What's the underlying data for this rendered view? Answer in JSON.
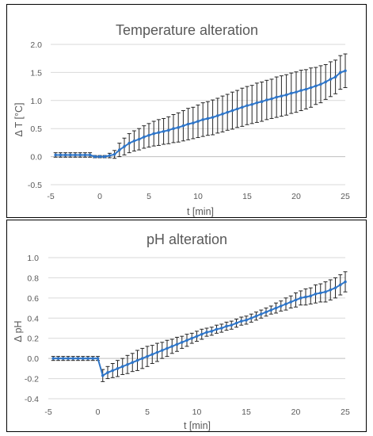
{
  "colors": {
    "series": "#2E75C8",
    "errorbar": "#262626",
    "grid": "#d9d9d9",
    "text": "#595959"
  },
  "chart_data": [
    {
      "type": "line",
      "title": "Temperature alteration",
      "xlabel": "t [min]",
      "ylabel": "Δ T [°C]",
      "xlim": [
        -5,
        25
      ],
      "ylim": [
        -0.5,
        2.0
      ],
      "xticks": [
        -5,
        0,
        5,
        10,
        15,
        20,
        25
      ],
      "xtick_labels": [
        "-5",
        "0",
        "5",
        "10",
        "15",
        "20",
        "25"
      ],
      "yticks": [
        -0.5,
        0,
        0.5,
        1,
        1.5,
        2
      ],
      "ytick_labels": [
        "-0.5",
        "0.0",
        "0.5",
        "1.0",
        "1.5",
        "2.0"
      ],
      "grid": "horizontal",
      "series": [
        {
          "x": [
            -4.5,
            -4,
            -3.5,
            -3,
            -2.5,
            -2,
            -1.5,
            -1,
            -0.5,
            0,
            0.5,
            1,
            1.5,
            2,
            2.5,
            3,
            3.5,
            4,
            4.5,
            5,
            5.5,
            6,
            6.5,
            7,
            7.5,
            8,
            8.5,
            9,
            9.5,
            10,
            10.5,
            11,
            11.5,
            12,
            12.5,
            13,
            13.5,
            14,
            14.5,
            15,
            15.5,
            16,
            16.5,
            17,
            17.5,
            18,
            18.5,
            19,
            19.5,
            20,
            20.5,
            21,
            21.5,
            22,
            22.5,
            23,
            23.5,
            24,
            24.5,
            25
          ],
          "values": [
            0.03,
            0.03,
            0.03,
            0.03,
            0.03,
            0.03,
            0.03,
            0.03,
            0.0,
            0.0,
            0.0,
            0.02,
            0.04,
            0.12,
            0.18,
            0.24,
            0.28,
            0.31,
            0.35,
            0.38,
            0.41,
            0.43,
            0.45,
            0.47,
            0.5,
            0.52,
            0.55,
            0.58,
            0.6,
            0.63,
            0.66,
            0.68,
            0.7,
            0.73,
            0.76,
            0.79,
            0.82,
            0.85,
            0.88,
            0.91,
            0.93,
            0.96,
            0.98,
            1.01,
            1.03,
            1.06,
            1.08,
            1.1,
            1.13,
            1.15,
            1.18,
            1.2,
            1.23,
            1.26,
            1.29,
            1.33,
            1.38,
            1.42,
            1.5,
            1.53
          ],
          "errors": [
            0.04,
            0.04,
            0.04,
            0.04,
            0.04,
            0.04,
            0.04,
            0.04,
            0.02,
            0.02,
            0.02,
            0.04,
            0.07,
            0.12,
            0.15,
            0.17,
            0.18,
            0.19,
            0.2,
            0.21,
            0.22,
            0.23,
            0.23,
            0.24,
            0.25,
            0.26,
            0.27,
            0.28,
            0.28,
            0.29,
            0.3,
            0.3,
            0.31,
            0.31,
            0.32,
            0.32,
            0.33,
            0.33,
            0.34,
            0.34,
            0.34,
            0.35,
            0.35,
            0.35,
            0.35,
            0.36,
            0.36,
            0.36,
            0.36,
            0.36,
            0.36,
            0.35,
            0.35,
            0.33,
            0.33,
            0.31,
            0.31,
            0.3,
            0.3,
            0.3
          ]
        }
      ]
    },
    {
      "type": "line",
      "title": "pH alteration",
      "xlabel": "t [min]",
      "ylabel": "Δ pH",
      "xlim": [
        -5,
        25
      ],
      "ylim": [
        -0.4,
        1.0
      ],
      "xticks": [
        -5,
        0,
        5,
        10,
        15,
        20,
        25
      ],
      "xtick_labels": [
        "-5",
        "0",
        "5",
        "10",
        "15",
        "20",
        "25"
      ],
      "yticks": [
        -0.4,
        -0.2,
        0,
        0.2,
        0.4,
        0.6,
        0.8,
        1.0
      ],
      "ytick_labels": [
        "-0.4",
        "-0.2",
        "0.0",
        "0.2",
        "0.4",
        "0.6",
        "0.8",
        "1.0"
      ],
      "grid": "horizontal",
      "series": [
        {
          "x": [
            -4.5,
            -4,
            -3.5,
            -3,
            -2.5,
            -2,
            -1.5,
            -1,
            -0.5,
            0,
            0.5,
            1,
            1.5,
            2,
            2.5,
            3,
            3.5,
            4,
            4.5,
            5,
            5.5,
            6,
            6.5,
            7,
            7.5,
            8,
            8.5,
            9,
            9.5,
            10,
            10.5,
            11,
            11.5,
            12,
            12.5,
            13,
            13.5,
            14,
            14.5,
            15,
            15.5,
            16,
            16.5,
            17,
            17.5,
            18,
            18.5,
            19,
            19.5,
            20,
            20.5,
            21,
            21.5,
            22,
            22.5,
            23,
            23.5,
            24,
            24.5,
            25
          ],
          "values": [
            0.0,
            0.0,
            0.0,
            0.0,
            0.0,
            0.0,
            0.0,
            0.0,
            0.0,
            0.0,
            -0.17,
            -0.14,
            -0.12,
            -0.1,
            -0.08,
            -0.06,
            -0.04,
            -0.02,
            0.0,
            0.02,
            0.04,
            0.06,
            0.08,
            0.1,
            0.12,
            0.14,
            0.16,
            0.18,
            0.2,
            0.22,
            0.24,
            0.26,
            0.27,
            0.29,
            0.3,
            0.32,
            0.33,
            0.35,
            0.37,
            0.38,
            0.4,
            0.42,
            0.44,
            0.46,
            0.48,
            0.5,
            0.52,
            0.54,
            0.56,
            0.58,
            0.6,
            0.61,
            0.62,
            0.64,
            0.65,
            0.66,
            0.68,
            0.7,
            0.73,
            0.76
          ],
          "errors": [
            0.02,
            0.02,
            0.02,
            0.02,
            0.02,
            0.02,
            0.02,
            0.02,
            0.02,
            0.02,
            0.06,
            0.06,
            0.07,
            0.08,
            0.08,
            0.09,
            0.09,
            0.1,
            0.1,
            0.1,
            0.09,
            0.09,
            0.08,
            0.08,
            0.07,
            0.07,
            0.06,
            0.06,
            0.05,
            0.05,
            0.05,
            0.04,
            0.04,
            0.04,
            0.04,
            0.04,
            0.04,
            0.04,
            0.04,
            0.04,
            0.04,
            0.04,
            0.04,
            0.04,
            0.04,
            0.05,
            0.05,
            0.06,
            0.06,
            0.07,
            0.07,
            0.08,
            0.08,
            0.09,
            0.09,
            0.1,
            0.1,
            0.1,
            0.1,
            0.1
          ]
        }
      ]
    }
  ]
}
